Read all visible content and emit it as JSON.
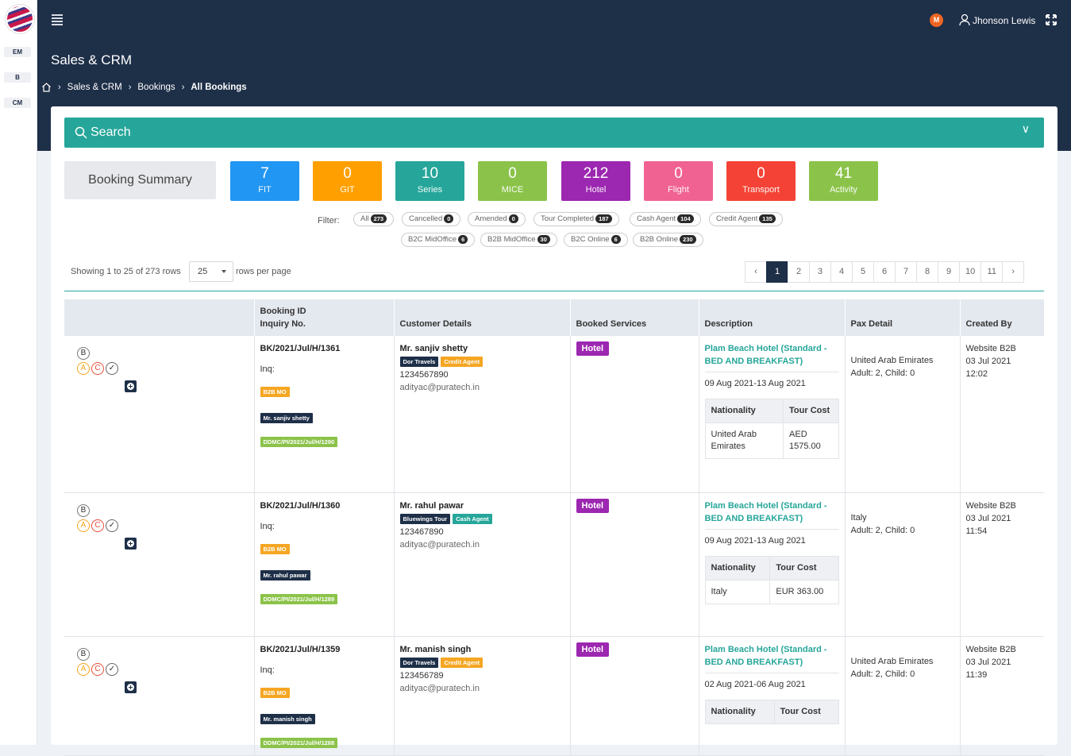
{
  "sidebar": {
    "chips": [
      "EM",
      "B",
      "CM"
    ]
  },
  "header": {
    "avatar_initial": "M",
    "user_name": "Jhonson Lewis",
    "page_title": "Sales & CRM",
    "breadcrumb": [
      "Sales & CRM",
      "Bookings",
      "All Bookings"
    ]
  },
  "search": {
    "label": "Search"
  },
  "summary": {
    "label": "Booking Summary",
    "stats": [
      {
        "value": "7",
        "label": "FIT",
        "color": "#2196f3"
      },
      {
        "value": "0",
        "label": "GIT",
        "color": "#ffa000"
      },
      {
        "value": "10",
        "label": "Series",
        "color": "#26a69a"
      },
      {
        "value": "0",
        "label": "MICE",
        "color": "#8bc34a"
      },
      {
        "value": "212",
        "label": "Hotel",
        "color": "#9c27b0"
      },
      {
        "value": "0",
        "label": "Flight",
        "color": "#f06292"
      },
      {
        "value": "0",
        "label": "Transport",
        "color": "#f44336"
      },
      {
        "value": "41",
        "label": "Activity",
        "color": "#8bc34a"
      }
    ]
  },
  "filter": {
    "label": "Filter:",
    "pills": [
      {
        "label": "All",
        "count": "273"
      },
      {
        "label": "Cancelled",
        "count": "0"
      },
      {
        "label": "Amended",
        "count": "0"
      },
      {
        "label": "Tour Completed",
        "count": "187"
      },
      {
        "label": "Cash Agent",
        "count": "104"
      },
      {
        "label": "Credit Agent",
        "count": "135"
      },
      {
        "label": "B2C MidOffice",
        "count": "6"
      },
      {
        "label": "B2B MidOffice",
        "count": "30"
      },
      {
        "label": "B2C Online",
        "count": "6"
      },
      {
        "label": "B2B Online",
        "count": "230"
      }
    ]
  },
  "pagination": {
    "showing": "Showing 1 to 25 of 273 rows",
    "page_size": "25",
    "rows_per_page": "rows per page",
    "pages": [
      "‹",
      "1",
      "2",
      "3",
      "4",
      "5",
      "6",
      "7",
      "8",
      "9",
      "10",
      "11",
      "›"
    ],
    "active": "1"
  },
  "table": {
    "headers": {
      "booking_id": "Booking ID",
      "inquiry": "Inquiry No.",
      "customer": "Customer Details",
      "services": "Booked Services",
      "description": "Description",
      "pax": "Pax Detail",
      "created": "Created By"
    },
    "rows": [
      {
        "b": "B",
        "a": "A",
        "c": "C",
        "booking_id": "BK/2021/Jul/H/1361",
        "inq": "Inq:",
        "b2b": "B2B MO",
        "cust_tag": "Mr. sanjiv shetty",
        "inquiry_no": "DDMC/PI/2021/Jul/H/1290",
        "customer": "Mr. sanjiv shetty",
        "agency": "Dor Travels",
        "agent_type": "Credit Agent",
        "phone": "1234567890",
        "email": "adityac@puratech.in",
        "service": "Hotel",
        "hotel": "Plam Beach Hotel (Standard -BED AND BREAKFAST)",
        "dates": "09 Aug 2021-13 Aug 2021",
        "nat_label": "Nationality",
        "cost_label": "Tour Cost",
        "nationality": "United Arab Emirates",
        "cost": "AED 1575.00",
        "pax_country": "United Arab Emirates",
        "pax": "Adult: 2, Child: 0",
        "created_by": "Website B2B",
        "created_date": "03 Jul 2021",
        "created_time": "12:02"
      },
      {
        "b": "B",
        "a": "A",
        "c": "C",
        "booking_id": "BK/2021/Jul/H/1360",
        "inq": "Inq:",
        "b2b": "B2B MO",
        "cust_tag": "Mr. rahul pawar",
        "inquiry_no": "DDMC/PI/2021/Jul/H/1289",
        "customer": "Mr. rahul pawar",
        "agency": "Bluewings Tour",
        "agent_type": "Cash Agent",
        "phone": "123467890",
        "email": "adityac@puratech.in",
        "service": "Hotel",
        "hotel": "Plam Beach Hotel (Standard -BED AND BREAKFAST)",
        "dates": "09 Aug 2021-13 Aug 2021",
        "nat_label": "Nationality",
        "cost_label": "Tour Cost",
        "nationality": "Italy",
        "cost": "EUR 363.00",
        "pax_country": "Italy",
        "pax": "Adult: 2, Child: 0",
        "created_by": "Website B2B",
        "created_date": "03 Jul 2021",
        "created_time": "11:54"
      },
      {
        "b": "B",
        "a": "A",
        "c": "C",
        "booking_id": "BK/2021/Jul/H/1359",
        "inq": "Inq:",
        "b2b": "B2B MO",
        "cust_tag": "Mr. manish singh",
        "inquiry_no": "DDMC/PI/2021/Jul/H/1288",
        "customer": "Mr. manish singh",
        "agency": "Dor Travels",
        "agent_type": "Credit Agent",
        "phone": "123456789",
        "email": "adityac@puratech.in",
        "service": "Hotel",
        "hotel": "Plam Beach Hotel (Standard -BED AND BREAKFAST)",
        "dates": "02 Aug 2021-06 Aug 2021",
        "nat_label": "Nationality",
        "cost_label": "Tour Cost",
        "nationality": "",
        "cost": "",
        "pax_country": "United Arab Emirates",
        "pax": "Adult: 2, Child: 0",
        "created_by": "Website B2B",
        "created_date": "03 Jul 2021",
        "created_time": "11:39"
      }
    ]
  }
}
